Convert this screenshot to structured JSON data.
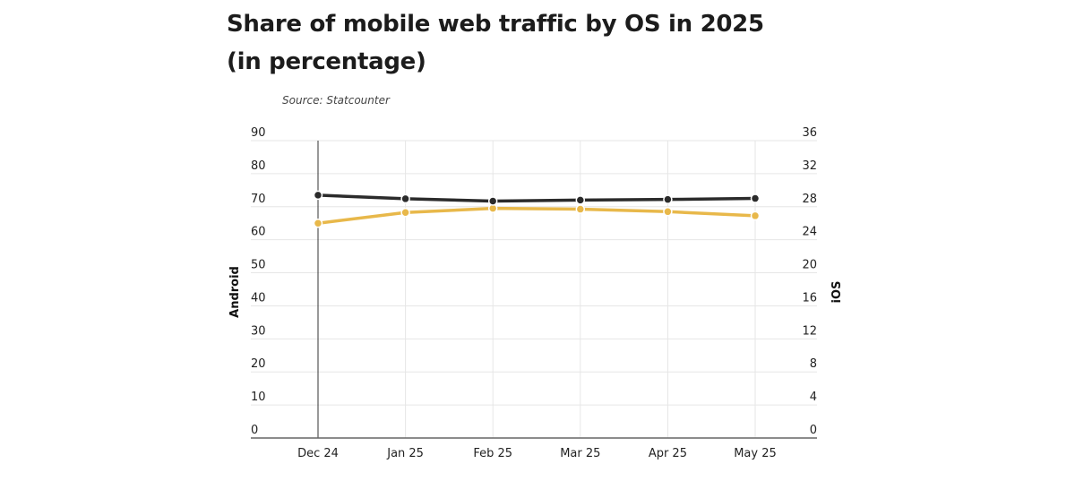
{
  "title_line1": "Share of mobile web traffic by OS in 2025",
  "title_line2": "(in percentage)",
  "source": "Source: Statcounter",
  "chart_data": {
    "type": "line",
    "title": "Share of mobile web traffic by OS in 2025 (in percentage)",
    "source": "Source: Statcounter",
    "categories": [
      "Dec 24",
      "Jan 25",
      "Feb 25",
      "Mar 25",
      "Apr 25",
      "May 25"
    ],
    "series": [
      {
        "name": "Android",
        "axis": "left",
        "color": "#2b2b2b",
        "values": [
          73.5,
          72.4,
          71.7,
          72.0,
          72.2,
          72.5
        ]
      },
      {
        "name": "iOS",
        "axis": "right",
        "color": "#e8b84a",
        "values": [
          26.0,
          27.3,
          27.8,
          27.7,
          27.4,
          26.9
        ]
      }
    ],
    "ylabel_left": "Android",
    "ylabel_right": "iOS",
    "ylim_left": [
      0,
      90
    ],
    "ylim_right": [
      0,
      36
    ],
    "yticks_left": [
      0,
      10,
      20,
      30,
      40,
      50,
      60,
      70,
      80,
      90
    ],
    "yticks_right": [
      0,
      4,
      8,
      12,
      16,
      20,
      24,
      28,
      32,
      36
    ],
    "grid": true,
    "highlight_category": "Dec 24"
  }
}
